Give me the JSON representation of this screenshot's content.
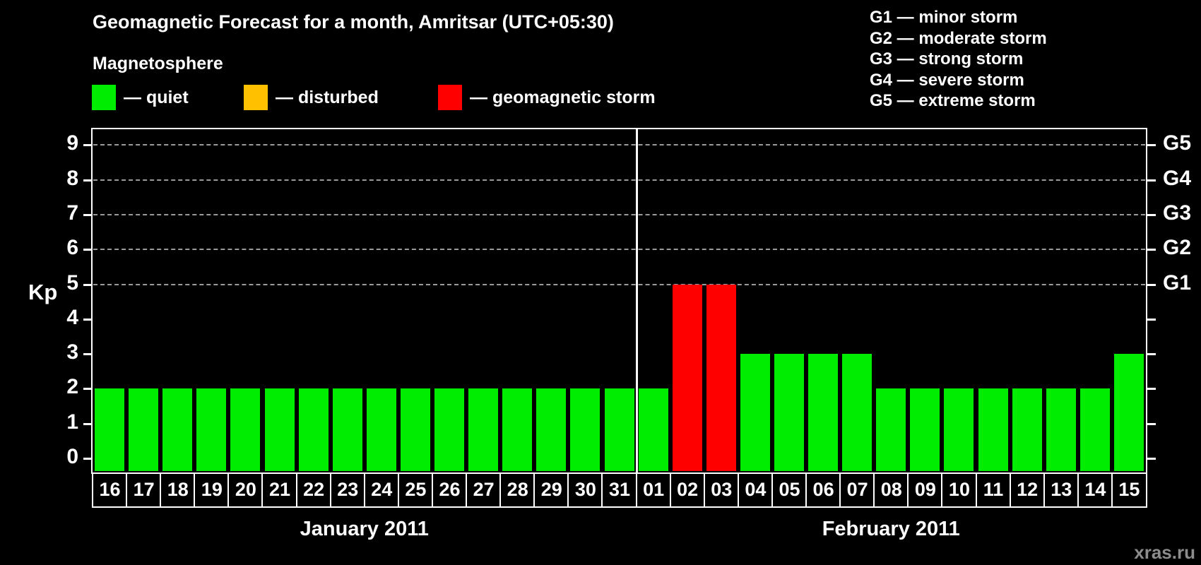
{
  "chart_data": {
    "type": "bar",
    "title": "Geomagnetic Forecast for a month, Amritsar (UTC+05:30)",
    "ylabel": "Kp",
    "ylim": [
      -0.4,
      9.45
    ],
    "yticks": [
      0,
      1,
      2,
      3,
      4,
      5,
      6,
      7,
      8,
      9
    ],
    "grid_kp": [
      5,
      6,
      7,
      8,
      9
    ],
    "grid_style": "dashed",
    "legend_position": "top",
    "g_labels": [
      {
        "kp": 5,
        "text": "G1"
      },
      {
        "kp": 6,
        "text": "G2"
      },
      {
        "kp": 7,
        "text": "G3"
      },
      {
        "kp": 8,
        "text": "G4"
      },
      {
        "kp": 9,
        "text": "G5"
      }
    ],
    "status_colors": {
      "quiet": "#00ec00",
      "disturbed": "#ffc000",
      "storm": "#ff0000"
    },
    "months": [
      {
        "label": "January 2011",
        "categories": [
          "16",
          "17",
          "18",
          "19",
          "20",
          "21",
          "22",
          "23",
          "24",
          "25",
          "26",
          "27",
          "28",
          "29",
          "30",
          "31"
        ],
        "values": [
          2,
          2,
          2,
          2,
          2,
          2,
          2,
          2,
          2,
          2,
          2,
          2,
          2,
          2,
          2,
          2
        ],
        "statuses": [
          "quiet",
          "quiet",
          "quiet",
          "quiet",
          "quiet",
          "quiet",
          "quiet",
          "quiet",
          "quiet",
          "quiet",
          "quiet",
          "quiet",
          "quiet",
          "quiet",
          "quiet",
          "quiet"
        ]
      },
      {
        "label": "February 2011",
        "categories": [
          "01",
          "02",
          "03",
          "04",
          "05",
          "06",
          "07",
          "08",
          "09",
          "10",
          "11",
          "12",
          "13",
          "14",
          "15"
        ],
        "values": [
          2,
          5,
          5,
          3,
          3,
          3,
          3,
          2,
          2,
          2,
          2,
          2,
          2,
          2,
          3
        ],
        "statuses": [
          "quiet",
          "storm",
          "storm",
          "quiet",
          "quiet",
          "quiet",
          "quiet",
          "quiet",
          "quiet",
          "quiet",
          "quiet",
          "quiet",
          "quiet",
          "quiet",
          "quiet"
        ]
      }
    ]
  },
  "legend": {
    "heading": "Magnetosphere",
    "items": [
      {
        "label": "— quiet",
        "status": "quiet"
      },
      {
        "label": "— disturbed",
        "status": "disturbed"
      },
      {
        "label": "— geomagnetic storm",
        "status": "storm"
      }
    ]
  },
  "g_legend": [
    "G1 — minor storm",
    "G2 — moderate storm",
    "G3 — strong storm",
    "G4 — severe storm",
    "G5 — extreme storm"
  ],
  "watermark": "xras.ru"
}
